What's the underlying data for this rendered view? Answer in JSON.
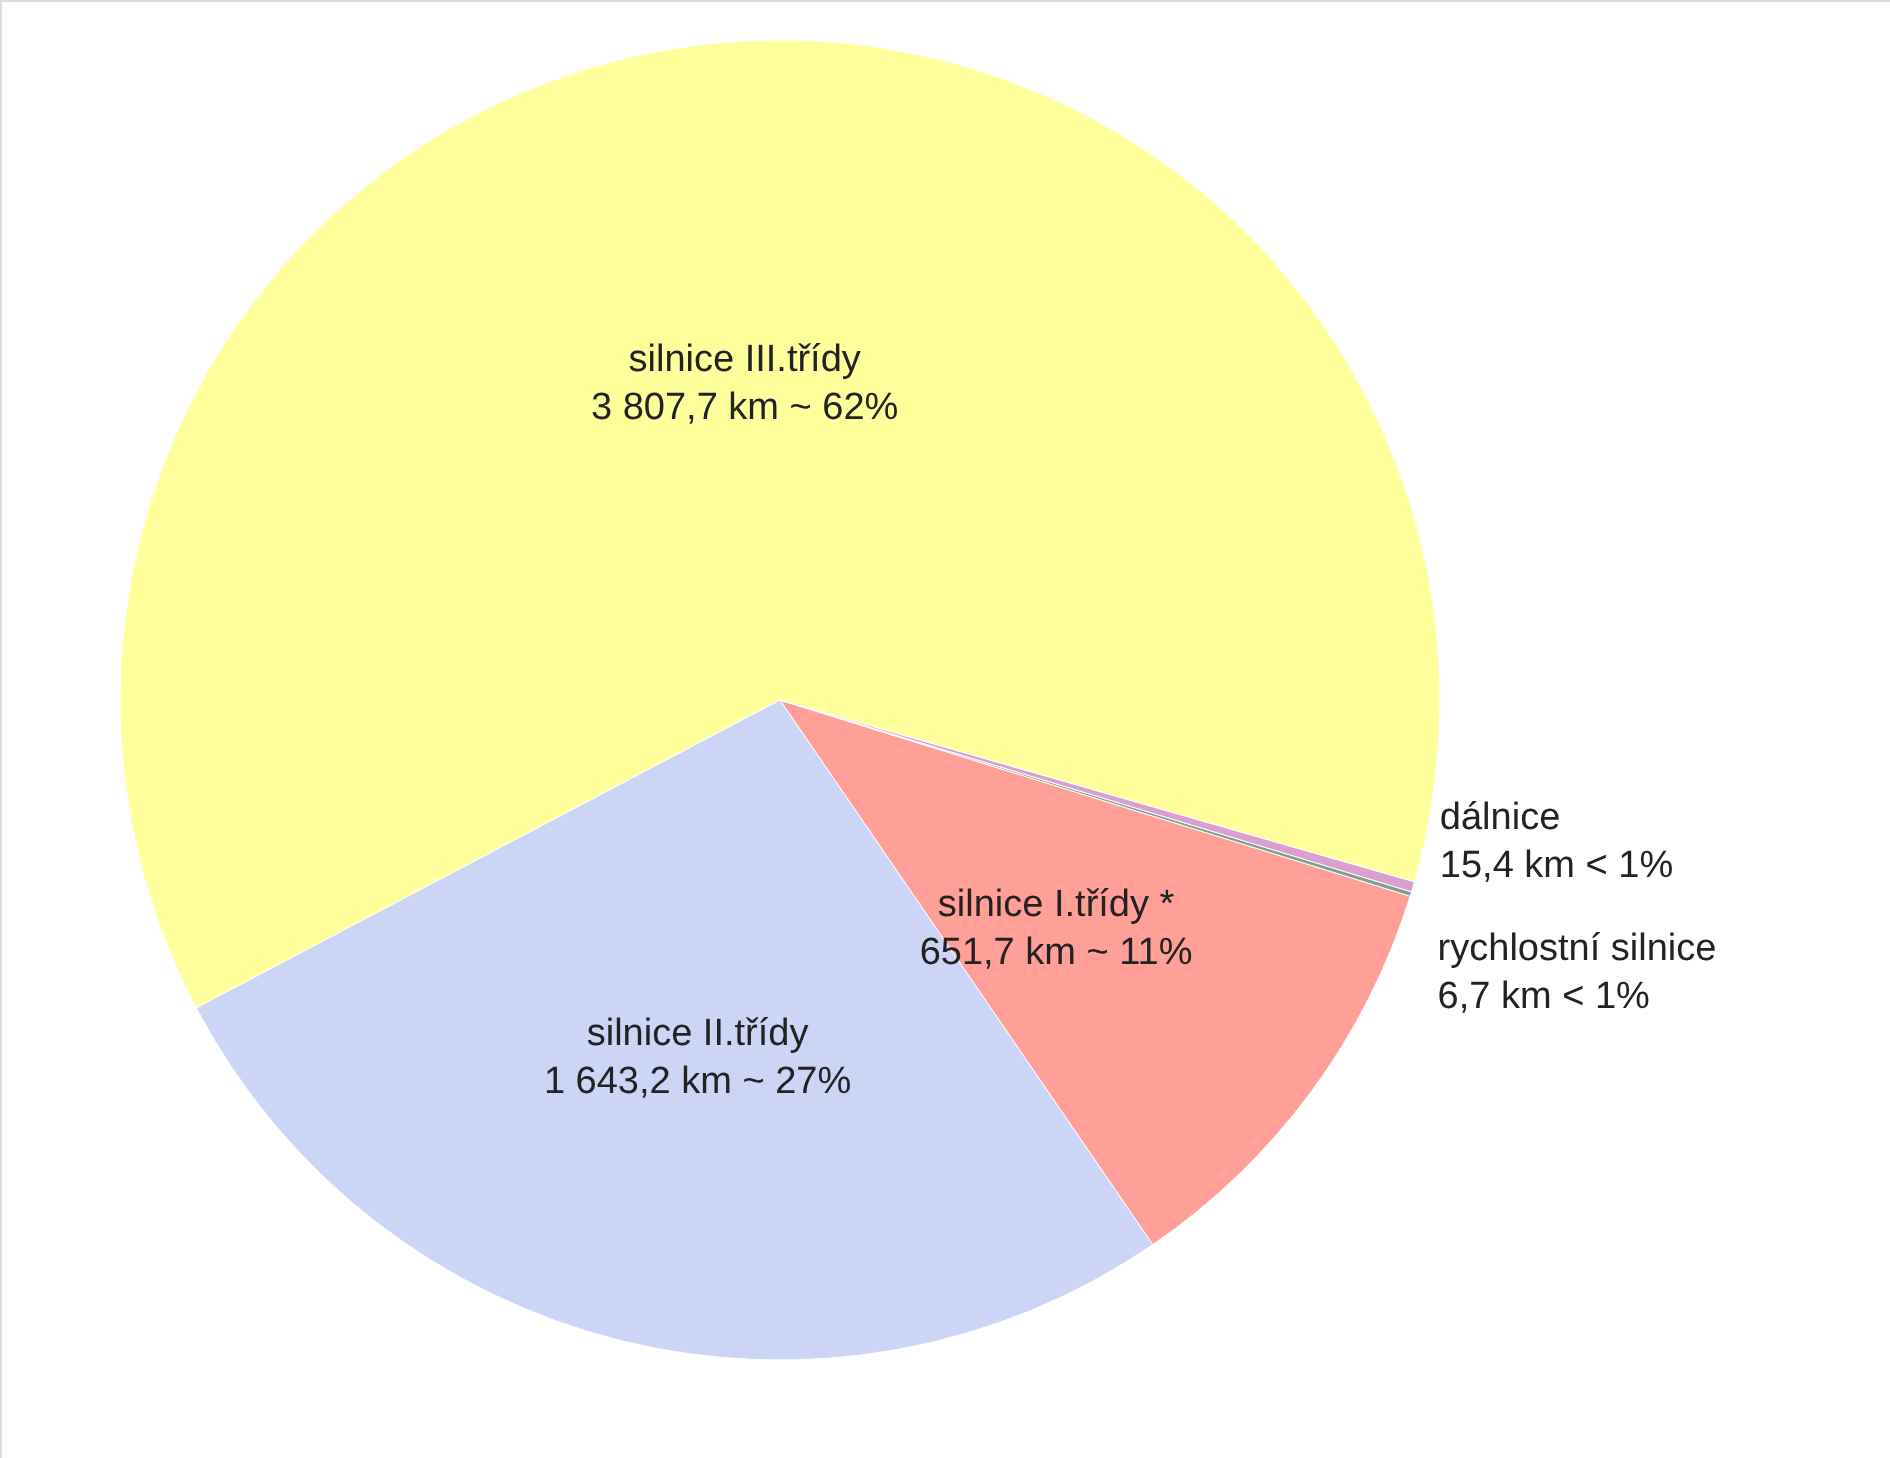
{
  "chart_data": {
    "type": "pie",
    "categories": [
      "silnice III.třídy",
      "silnice II.třídy",
      "silnice I.třídy *",
      "rychlostní silnice",
      "dálnice"
    ],
    "values": [
      3807.7,
      1643.2,
      651.7,
      6.7,
      15.4
    ],
    "value_labels": [
      "3 807,7 km ~ 62%",
      "1 643,2 km ~ 27%",
      "651,7 km ~ 11%",
      "6,7 km < 1%",
      "15,4 km < 1%"
    ],
    "colors": [
      "#ffff9c",
      "#ccd5f5",
      "#ff9f98",
      "#7f9f8f",
      "#d9a0d0"
    ]
  }
}
